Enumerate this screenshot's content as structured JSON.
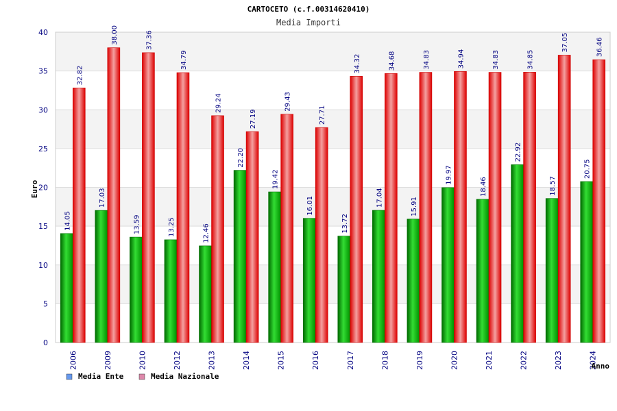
{
  "chart_data": {
    "type": "bar",
    "title": "CARTOCETO (c.f.00314620410)",
    "subtitle": "Media Importi",
    "ylabel": "Euro",
    "xlabel": "Anno",
    "ylim": [
      0,
      40
    ],
    "yticks": [
      "0",
      "5",
      "10",
      "15",
      "20",
      "25",
      "30",
      "35",
      "40"
    ],
    "categories": [
      "2006",
      "2009",
      "2010",
      "2012",
      "2013",
      "2014",
      "2015",
      "2016",
      "2017",
      "2018",
      "2019",
      "2020",
      "2021",
      "2022",
      "2023",
      "2024"
    ],
    "series": [
      {
        "name": "Media Ente",
        "legend_color": "#6699ee",
        "color": "#00b000",
        "values": [
          14.05,
          17.03,
          13.59,
          13.25,
          12.46,
          22.2,
          19.42,
          16.01,
          13.72,
          17.04,
          15.91,
          19.97,
          18.46,
          22.92,
          18.57,
          20.75
        ],
        "labels": [
          "14.05",
          "17.03",
          "13.59",
          "13.25",
          "12.46",
          "22.20",
          "19.42",
          "16.01",
          "13.72",
          "17.04",
          "15.91",
          "19.97",
          "18.46",
          "22.92",
          "18.57",
          "20.75"
        ]
      },
      {
        "name": "Media Nazionale",
        "legend_color": "#dd88aa",
        "color": "#ee0000",
        "values": [
          32.82,
          38.0,
          37.36,
          34.79,
          29.24,
          27.19,
          29.43,
          27.71,
          34.32,
          34.68,
          34.83,
          34.94,
          34.83,
          34.85,
          37.05,
          36.46
        ],
        "labels": [
          "32.82",
          "38.00",
          "37.36",
          "34.79",
          "29.24",
          "27.19",
          "29.43",
          "27.71",
          "34.32",
          "34.68",
          "34.83",
          "34.94",
          "34.83",
          "34.85",
          "37.05",
          "36.46"
        ]
      }
    ],
    "grid": true,
    "legend": "bottom-left"
  }
}
